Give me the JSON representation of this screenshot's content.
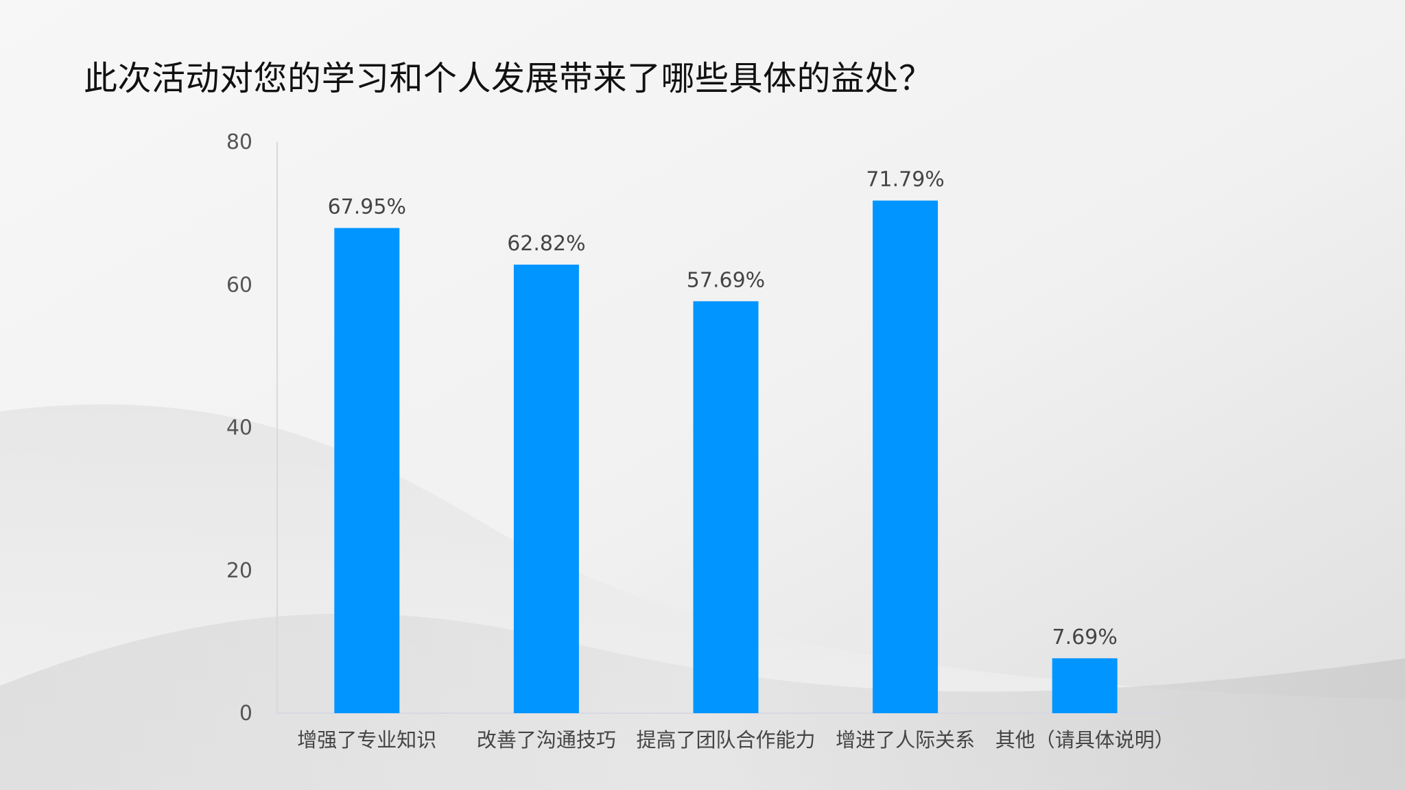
{
  "chart_data": {
    "type": "bar",
    "title": "此次活动对您的学习和个人发展带来了哪些具体的益处？",
    "categories": [
      "增强了专业知识",
      "改善了沟通技巧",
      "提高了团队合作能力",
      "增进了人际关系",
      "其他（请具体说明）"
    ],
    "values": [
      67.95,
      62.82,
      57.69,
      71.79,
      7.69
    ],
    "data_labels": [
      "67.95%",
      "62.82%",
      "57.69%",
      "71.79%",
      "7.69%"
    ],
    "ylim": [
      0,
      80
    ],
    "yticks": [
      0,
      20,
      40,
      60,
      80
    ],
    "grid": false,
    "legend": "none",
    "bar_color": "#0095ff"
  }
}
